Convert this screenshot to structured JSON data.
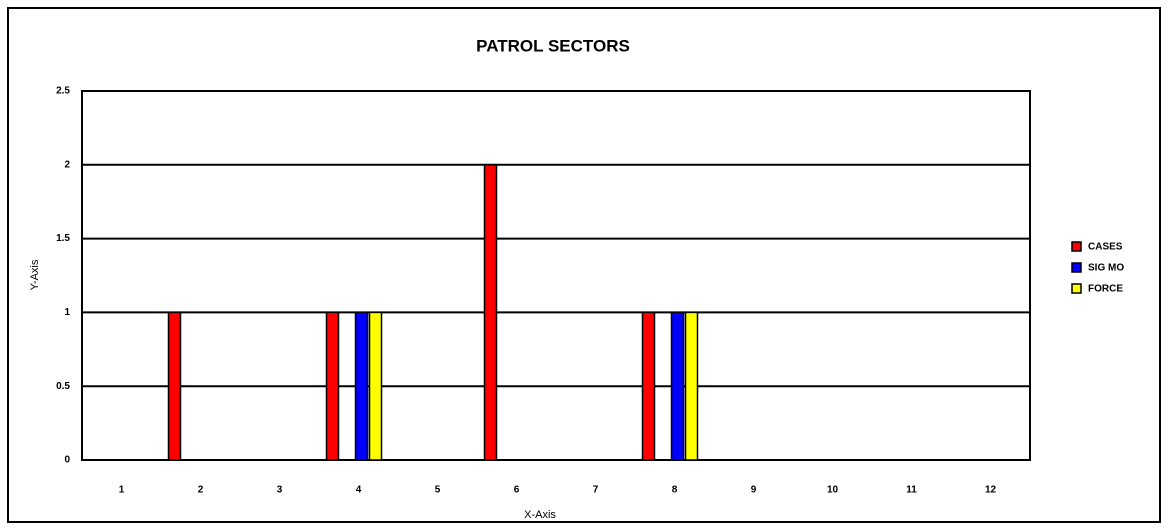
{
  "chart_data": {
    "type": "bar",
    "title": "PATROL SECTORS",
    "x_label": "X-Axis",
    "y_label": "Y-Axis",
    "categories": [
      "1",
      "2",
      "3",
      "4",
      "5",
      "6",
      "7",
      "8",
      "9",
      "10",
      "11",
      "12"
    ],
    "series": [
      {
        "name": "CASES",
        "color": "#ff0000",
        "values": [
          0,
          1,
          0,
          1,
          0,
          2,
          0,
          1,
          0,
          0,
          0,
          0
        ]
      },
      {
        "name": "SIG MO",
        "color": "#0000ff",
        "values": [
          0,
          0,
          0,
          1,
          0,
          0,
          0,
          1,
          0,
          0,
          0,
          0
        ]
      },
      {
        "name": "FORCE",
        "color": "#ffff00",
        "values": [
          0,
          0,
          0,
          1,
          0,
          0,
          0,
          1,
          0,
          0,
          0,
          0
        ]
      }
    ],
    "ylim": [
      0,
      2.5
    ],
    "yticks": [
      0,
      0.5,
      1,
      1.5,
      2,
      2.5
    ],
    "grid": true,
    "legend": "right"
  }
}
